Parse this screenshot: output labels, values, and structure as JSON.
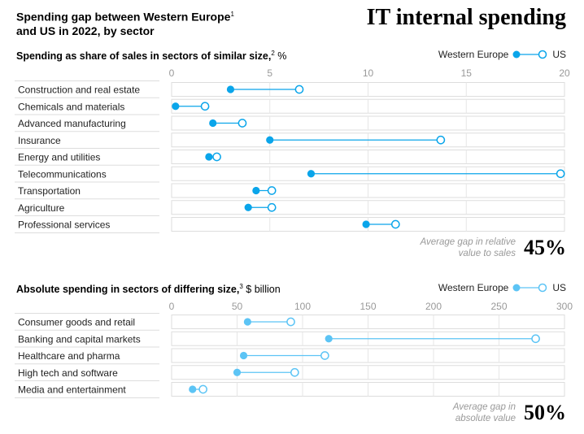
{
  "title": "Spending gap between Western Europe",
  "title_sup": "1",
  "title_line2": "and US in 2022, by sector",
  "brand": "IT internal spending",
  "chart_data": [
    {
      "type": "dumbbell",
      "title": "Spending as share of sales in sectors of similar size,",
      "title_sup": "2",
      "unit": "%",
      "legend": [
        "Western Europe",
        "US"
      ],
      "color": "#0aa5ea",
      "xlim": [
        0,
        20
      ],
      "ticks": [
        "0",
        "5",
        "10",
        "15",
        "20"
      ],
      "tick_values": [
        0,
        5,
        10,
        15,
        20
      ],
      "categories": [
        "Construction and real estate",
        "Chemicals and materials",
        "Advanced manufacturing",
        "Insurance",
        "Energy and utilities",
        "Telecommunications",
        "Transportation",
        "Agriculture",
        "Professional services"
      ],
      "series": [
        {
          "name": "Western Europe",
          "values": [
            3.0,
            0.2,
            2.1,
            5.0,
            1.9,
            7.1,
            4.3,
            3.9,
            9.9
          ]
        },
        {
          "name": "US",
          "values": [
            6.5,
            1.7,
            3.6,
            13.7,
            2.3,
            19.8,
            5.1,
            5.1,
            11.4
          ]
        }
      ],
      "note_line1": "Average gap in relative",
      "note_line2": "value to sales",
      "note_value": "45%"
    },
    {
      "type": "dumbbell",
      "title": "Absolute spending in sectors of differing size,",
      "title_sup": "3",
      "unit": "$ billion",
      "legend": [
        "Western Europe",
        "US"
      ],
      "color": "#5cc4f5",
      "xlim": [
        0,
        300
      ],
      "ticks": [
        "0",
        "50",
        "100",
        "150",
        "200",
        "250",
        "300"
      ],
      "tick_values": [
        0,
        50,
        100,
        150,
        200,
        250,
        300
      ],
      "categories": [
        "Consumer goods and retail",
        "Banking and capital markets",
        "Healthcare and pharma",
        "High tech and software",
        "Media and entertainment"
      ],
      "series": [
        {
          "name": "Western Europe",
          "values": [
            58,
            120,
            55,
            50,
            16
          ]
        },
        {
          "name": "US",
          "values": [
            91,
            278,
            117,
            94,
            24
          ]
        }
      ],
      "note_line1": "Average gap in",
      "note_line2": "absolute value",
      "note_value": "50%"
    }
  ]
}
